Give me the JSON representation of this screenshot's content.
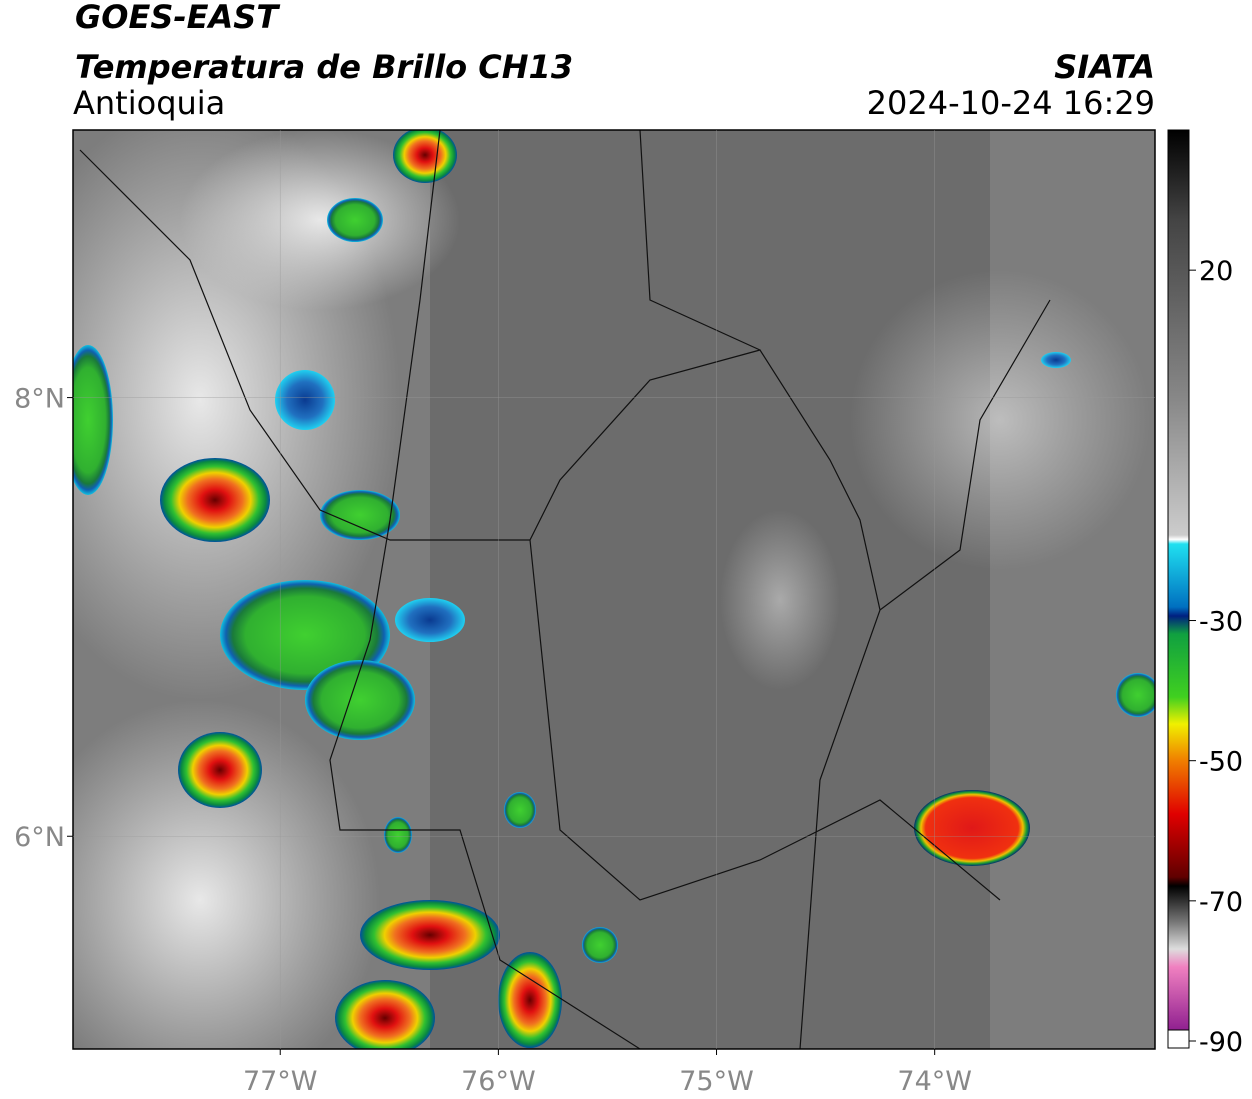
{
  "header": {
    "title": "GOES-EAST",
    "subtitle": "Temperatura de Brillo CH13",
    "region": "Antioquia",
    "source": "SIATA",
    "datetime": "2024-10-24 16:29"
  },
  "map": {
    "xlim": [
      -77.95,
      -72.99
    ],
    "ylim": [
      5.03,
      9.22
    ],
    "xticks": [
      {
        "value": -77,
        "label": "77°W"
      },
      {
        "value": -76,
        "label": "76°W"
      },
      {
        "value": -75,
        "label": "75°W"
      },
      {
        "value": -74,
        "label": "74°W"
      }
    ],
    "yticks": [
      {
        "value": 8,
        "label": "8°N"
      },
      {
        "value": 6,
        "label": "6°N"
      }
    ]
  },
  "colorbar": {
    "lim": [
      -91,
      40
    ],
    "ticks": [
      20,
      -30,
      -50,
      -70,
      -90
    ]
  }
}
